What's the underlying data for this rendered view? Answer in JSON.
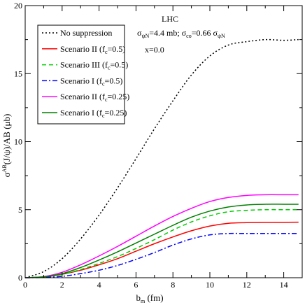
{
  "chart_data": {
    "type": "line",
    "title": "",
    "xlabel": {
      "main": "b",
      "sub": "m",
      "rest": " (fm)"
    },
    "ylabel": {
      "main": "σ",
      "sup": "AB",
      "rest": "(J/ψ)/AB (μb)"
    },
    "xlim": [
      0,
      15
    ],
    "ylim": [
      0,
      20
    ],
    "xticks": [
      "0",
      "2",
      "4",
      "6",
      "8",
      "10",
      "12",
      "14"
    ],
    "yticks": [
      "0",
      "5",
      "10",
      "15",
      "20"
    ],
    "grid": false,
    "legend_position": "top-left",
    "annotations": {
      "collider": "LHC",
      "sigma_psiN": {
        "main": "σ",
        "sub": "ψN",
        "rest": "=4.4 mb; "
      },
      "sigma_co": {
        "main": "σ",
        "sub": "co",
        "rest": "=0.66 ",
        "main2": "σ",
        "sub2": "ψN"
      },
      "x_value": "x=0.0"
    },
    "x": [
      0,
      1,
      2,
      3,
      4,
      5,
      6,
      7,
      8,
      9,
      10,
      11,
      12,
      13,
      14,
      14.8
    ],
    "series": [
      {
        "name": "No suppression",
        "legend": {
          "main": "No suppression"
        },
        "color": "#000000",
        "dash": "2,3",
        "values": [
          0,
          0.45,
          1.4,
          2.85,
          4.6,
          6.6,
          8.75,
          10.95,
          13.0,
          14.9,
          16.3,
          17.1,
          17.35,
          17.5,
          17.45,
          17.5
        ]
      },
      {
        "name": "Scenario II (fc=0.5)",
        "legend": {
          "main": "Scenario II (f",
          "sub": "c",
          "rest": "=0.5)"
        },
        "color": "#ff0000",
        "dash": "",
        "values": [
          0,
          0.05,
          0.25,
          0.55,
          0.95,
          1.4,
          1.95,
          2.5,
          3.0,
          3.45,
          3.8,
          4.0,
          4.05,
          4.07,
          4.07,
          4.08
        ]
      },
      {
        "name": "Scenario III (fc=0.5)",
        "legend": {
          "main": "Scenario III (f",
          "sub": "c",
          "rest": "=0.5)"
        },
        "color": "#00cc00",
        "dash": "6,4",
        "values": [
          0,
          0.05,
          0.25,
          0.6,
          1.05,
          1.55,
          2.15,
          2.8,
          3.5,
          4.1,
          4.55,
          4.85,
          4.95,
          5.0,
          5.0,
          5.0
        ]
      },
      {
        "name": "Scenario I (fc=0.5)",
        "legend": {
          "main": "Scenario I (f",
          "sub": "c",
          "rest": "=0.5)"
        },
        "color": "#0000ff",
        "dash": "7,3,2,3",
        "values": [
          0,
          0.02,
          0.1,
          0.3,
          0.55,
          0.9,
          1.35,
          1.85,
          2.4,
          2.85,
          3.15,
          3.25,
          3.25,
          3.25,
          3.25,
          3.25
        ]
      },
      {
        "name": "Scenario II (fc=0.25)",
        "legend": {
          "main": "Scenario II (f",
          "sub": "c",
          "rest": "=0.25)"
        },
        "color": "#ff00ff",
        "dash": "",
        "values": [
          0,
          0.08,
          0.4,
          0.95,
          1.6,
          2.3,
          3.05,
          3.8,
          4.5,
          5.1,
          5.6,
          5.9,
          6.05,
          6.1,
          6.1,
          6.1
        ]
      },
      {
        "name": "Scenario I (fc=0.25)",
        "legend": {
          "main": "Scenario I (f",
          "sub": "c",
          "rest": "=0.25)"
        },
        "color": "#008000",
        "dash": "",
        "values": [
          0,
          0.07,
          0.3,
          0.75,
          1.3,
          1.9,
          2.55,
          3.2,
          3.85,
          4.45,
          4.9,
          5.2,
          5.35,
          5.4,
          5.4,
          5.4
        ]
      }
    ]
  }
}
